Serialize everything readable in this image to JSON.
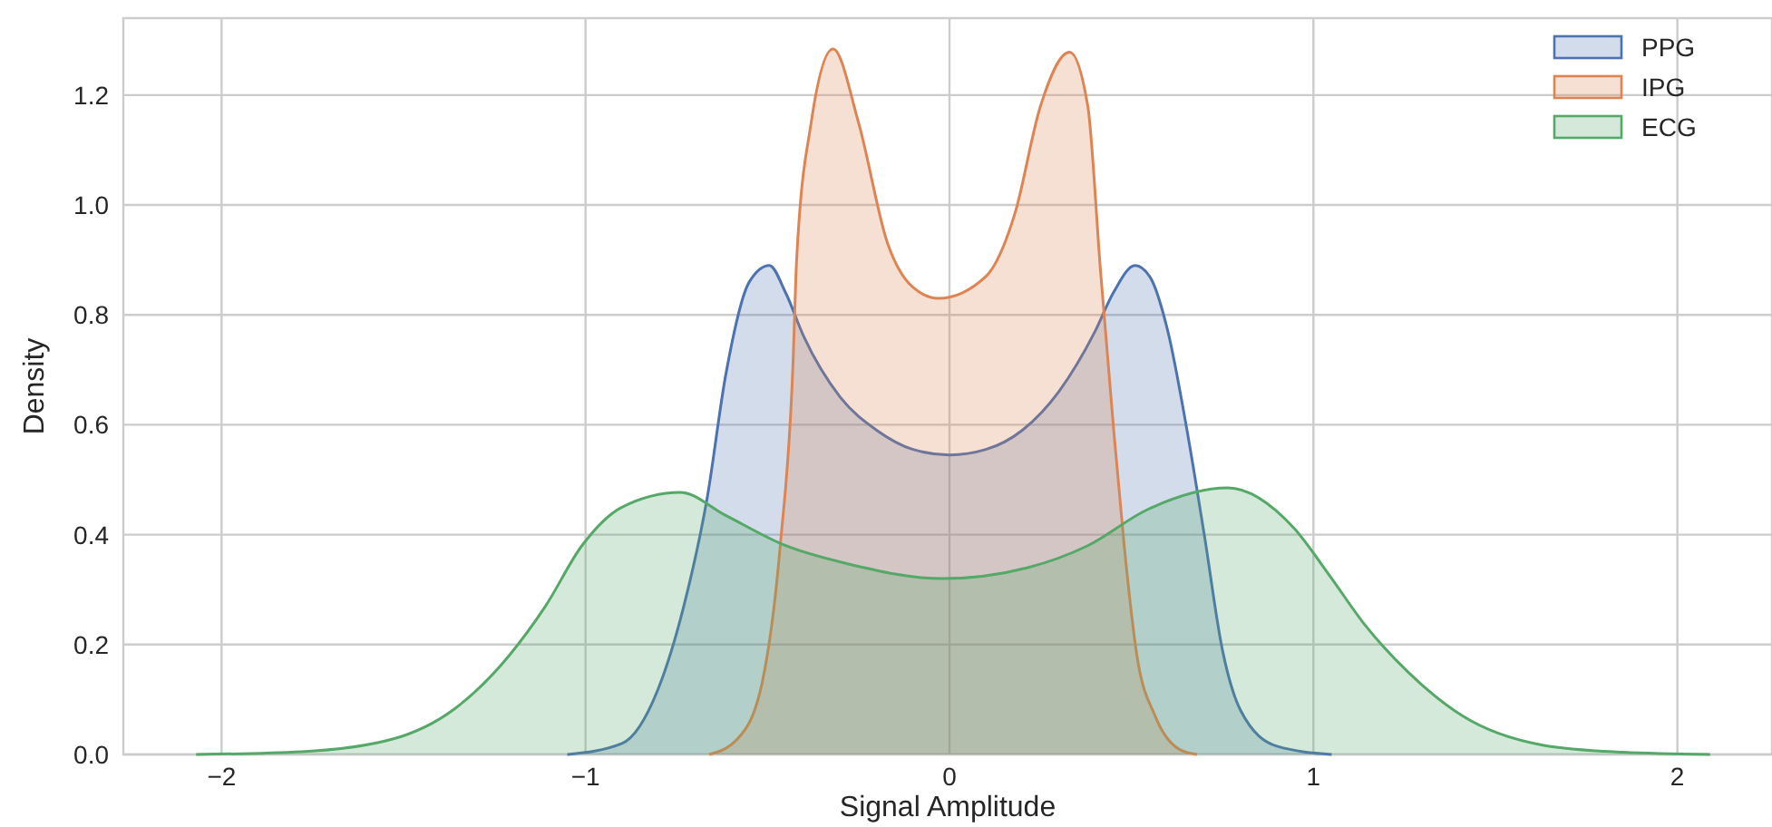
{
  "chart_data": {
    "type": "area",
    "xlabel": "Signal Amplitude",
    "ylabel": "Density",
    "xlim": [
      -2.27,
      2.26
    ],
    "ylim": [
      0,
      1.34
    ],
    "xticks": [
      {
        "value": -2,
        "label": "−2"
      },
      {
        "value": -1,
        "label": "−1"
      },
      0,
      1,
      2
    ],
    "yticks": [
      {
        "value": 0,
        "label": "0.0"
      },
      {
        "value": 0.2,
        "label": "0.2"
      },
      {
        "value": 0.4,
        "label": "0.4"
      },
      {
        "value": 0.6,
        "label": "0.6"
      },
      {
        "value": 0.8,
        "label": "0.8"
      },
      {
        "value": 1,
        "label": "1.0"
      },
      {
        "value": 1.2,
        "label": "1.2"
      }
    ],
    "grid": true,
    "legend": "top right",
    "marker": "none",
    "line_style": "solid",
    "series": [
      {
        "name": "PPG",
        "color": "#4c72b0",
        "x": [
          -1.05,
          -0.9,
          -0.8,
          -0.73,
          -0.665,
          -0.615,
          -0.55,
          -0.495,
          -0.45,
          -0.4,
          -0.3,
          -0.2,
          -0.1,
          0,
          0.1,
          0.2,
          0.3,
          0.4,
          0.45,
          0.51,
          0.55,
          0.6,
          0.65,
          0.7,
          0.75,
          0.8,
          0.9,
          1.05
        ],
        "values": [
          0,
          0.02,
          0.12,
          0.27,
          0.47,
          0.69,
          0.86,
          0.89,
          0.84,
          0.76,
          0.65,
          0.59,
          0.555,
          0.545,
          0.555,
          0.59,
          0.66,
          0.77,
          0.84,
          0.89,
          0.87,
          0.77,
          0.6,
          0.4,
          0.19,
          0.08,
          0.015,
          0
        ]
      },
      {
        "name": "IPG",
        "color": "#dd8452",
        "x": [
          -0.66,
          -0.58,
          -0.515,
          -0.465,
          -0.43,
          -0.42,
          -0.38,
          -0.32,
          -0.25,
          -0.17,
          -0.1,
          -0.03,
          0.1,
          0.18,
          0.25,
          0.33,
          0.38,
          0.415,
          0.45,
          0.48,
          0.515,
          0.565,
          0.63,
          0.68
        ],
        "values": [
          0,
          0.03,
          0.13,
          0.38,
          0.71,
          0.9,
          1.15,
          1.284,
          1.15,
          0.93,
          0.85,
          0.83,
          0.87,
          0.985,
          1.18,
          1.278,
          1.18,
          0.88,
          0.6,
          0.38,
          0.18,
          0.07,
          0.01,
          0
        ]
      },
      {
        "name": "ECG",
        "color": "#55a868",
        "x": [
          -2.07,
          -1.78,
          -1.53,
          -1.36,
          -1.21,
          -1.11,
          -1.01,
          -0.9,
          -0.74,
          -0.615,
          -0.45,
          -0.28,
          -0.02,
          0.215,
          0.38,
          0.545,
          0.765,
          0.945,
          1.045,
          1.14,
          1.26,
          1.41,
          1.63,
          1.85,
          2.09
        ],
        "values": [
          0,
          0.005,
          0.028,
          0.083,
          0.18,
          0.27,
          0.38,
          0.45,
          0.477,
          0.435,
          0.38,
          0.347,
          0.32,
          0.34,
          0.38,
          0.446,
          0.485,
          0.413,
          0.325,
          0.237,
          0.15,
          0.07,
          0.017,
          0.004,
          0
        ]
      }
    ]
  }
}
